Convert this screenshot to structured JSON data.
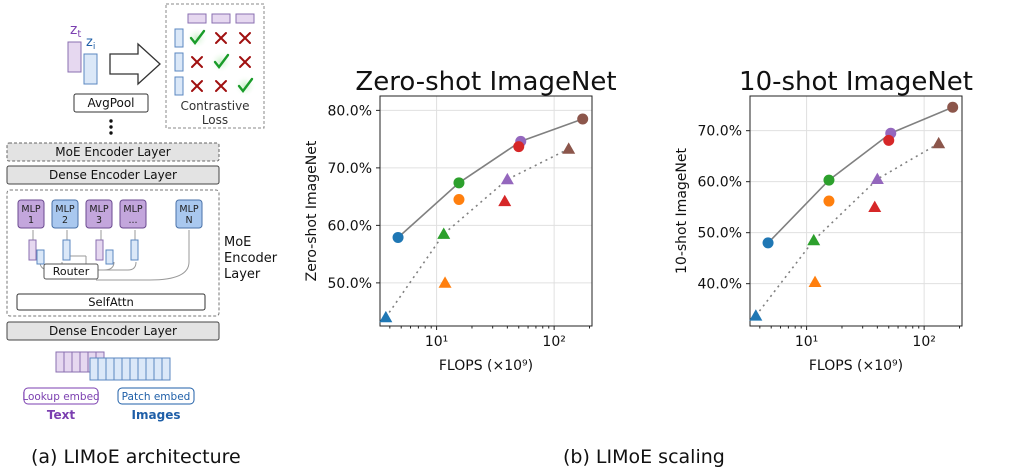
{
  "architecture": {
    "z_t": "z",
    "z_t_sub": "t",
    "z_i": "z",
    "z_i_sub": "i",
    "avgpool": "AvgPool",
    "contrastive_line1": "Contrastive",
    "contrastive_line2": "Loss",
    "moe_encoder_layer": "MoE Encoder Layer",
    "dense_encoder_layer": "Dense Encoder Layer",
    "mlps": [
      "MLP\n1",
      "MLP\n2",
      "MLP\n3",
      "MLP\n...",
      "MLP\nN"
    ],
    "router": "Router",
    "selfattn": "SelfAttn",
    "moe_side_label": [
      "MoE",
      "Encoder",
      "Layer"
    ],
    "dense_encoder_layer_bottom": "Dense Encoder Layer",
    "lookup_embed": "Lookup embed",
    "patch_embed": "Patch embed",
    "text_label": "Text",
    "images_label": "Images",
    "matrix": [
      [
        "check",
        "cross",
        "cross"
      ],
      [
        "cross",
        "check",
        "cross"
      ],
      [
        "cross",
        "cross",
        "check"
      ]
    ],
    "colors": {
      "text_purple": "#7b3fb0",
      "image_blue": "#1f5fa8",
      "check_green": "#1a9c2a",
      "cross_red": "#a01010"
    }
  },
  "captions": {
    "left": "(a) LIMoE architecture",
    "right": "(b) LIMoE scaling"
  },
  "chart_data": [
    {
      "type": "scatter",
      "title": "Zero-shot ImageNet",
      "xlabel": "FLOPS (×10⁹)",
      "ylabel": "Zero-shot ImageNet",
      "x_scale": "log",
      "xlim": [
        3.3,
        210
      ],
      "ylim": [
        42.5,
        82.5
      ],
      "xticks": [
        10,
        100
      ],
      "xtick_labels": [
        "10¹",
        "10²"
      ],
      "yticks": [
        50,
        60,
        70,
        80
      ],
      "ytick_labels": [
        "50.0%",
        "60.0%",
        "70.0%",
        "80.0%"
      ],
      "grid": true,
      "series": [
        {
          "marker": "circle",
          "line": "solid",
          "line_color": "#808080",
          "points": [
            {
              "x": 4.7,
              "y": 57.9,
              "color": "#1f77b4"
            },
            {
              "x": 15.5,
              "y": 67.4,
              "color": "#2ca02c"
            },
            {
              "x": 52,
              "y": 74.6,
              "color": "#9467bd"
            },
            {
              "x": 175,
              "y": 78.5,
              "color": "#8c564b"
            }
          ]
        },
        {
          "marker": "circle",
          "line": "none",
          "points": [
            {
              "x": 15.5,
              "y": 64.5,
              "color": "#ff7f0e"
            },
            {
              "x": 50,
              "y": 73.7,
              "color": "#d62728"
            }
          ]
        },
        {
          "marker": "triangle",
          "line": "dotted",
          "line_color": "#808080",
          "points": [
            {
              "x": 3.7,
              "y": 44.0,
              "color": "#1f77b4"
            },
            {
              "x": 11.5,
              "y": 58.5,
              "color": "#2ca02c"
            },
            {
              "x": 40,
              "y": 68.0,
              "color": "#9467bd"
            },
            {
              "x": 133,
              "y": 73.3,
              "color": "#8c564b"
            }
          ]
        },
        {
          "marker": "triangle",
          "line": "none",
          "points": [
            {
              "x": 11.8,
              "y": 50.0,
              "color": "#ff7f0e"
            },
            {
              "x": 38,
              "y": 64.2,
              "color": "#d62728"
            }
          ]
        }
      ]
    },
    {
      "type": "scatter",
      "title": "10-shot ImageNet",
      "xlabel": "FLOPS (×10⁹)",
      "ylabel": "10-shot ImageNet",
      "x_scale": "log",
      "xlim": [
        3.3,
        210
      ],
      "ylim": [
        31.7,
        76.8
      ],
      "xticks": [
        10,
        100
      ],
      "xtick_labels": [
        "10¹",
        "10²"
      ],
      "yticks": [
        40,
        50,
        60,
        70
      ],
      "ytick_labels": [
        "40.0%",
        "50.0%",
        "60.0%",
        "70.0%"
      ],
      "grid": true,
      "series": [
        {
          "marker": "circle",
          "line": "solid",
          "line_color": "#808080",
          "points": [
            {
              "x": 4.7,
              "y": 48.0,
              "color": "#1f77b4"
            },
            {
              "x": 15.5,
              "y": 60.3,
              "color": "#2ca02c"
            },
            {
              "x": 52,
              "y": 69.5,
              "color": "#9467bd"
            },
            {
              "x": 175,
              "y": 74.6,
              "color": "#8c564b"
            }
          ]
        },
        {
          "marker": "circle",
          "line": "none",
          "points": [
            {
              "x": 15.5,
              "y": 56.2,
              "color": "#ff7f0e"
            },
            {
              "x": 50,
              "y": 68.1,
              "color": "#d62728"
            }
          ]
        },
        {
          "marker": "triangle",
          "line": "dotted",
          "line_color": "#808080",
          "points": [
            {
              "x": 3.7,
              "y": 33.7,
              "color": "#1f77b4"
            },
            {
              "x": 11.5,
              "y": 48.5,
              "color": "#2ca02c"
            },
            {
              "x": 40,
              "y": 60.5,
              "color": "#9467bd"
            },
            {
              "x": 133,
              "y": 67.5,
              "color": "#8c564b"
            }
          ]
        },
        {
          "marker": "triangle",
          "line": "none",
          "points": [
            {
              "x": 11.8,
              "y": 40.3,
              "color": "#ff7f0e"
            },
            {
              "x": 38,
              "y": 55.0,
              "color": "#d62728"
            }
          ]
        }
      ]
    }
  ]
}
